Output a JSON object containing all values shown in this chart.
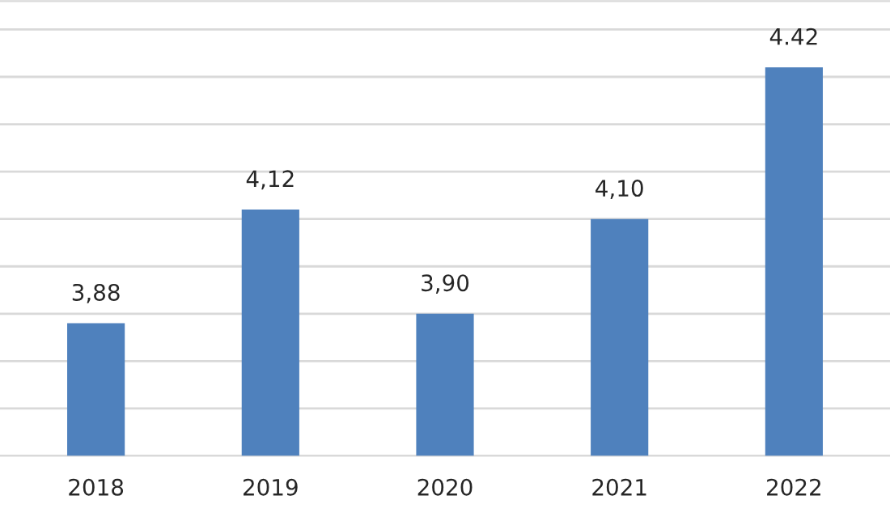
{
  "chart_data": {
    "type": "bar",
    "categories": [
      "2018",
      "2019",
      "2020",
      "2021",
      "2022"
    ],
    "values": [
      3.88,
      4.12,
      3.9,
      4.1,
      4.42
    ],
    "value_labels": [
      "3,88",
      "4,12",
      "3,90",
      "4,10",
      "4.42"
    ],
    "color": "#4f81bd",
    "ylim": [
      3.6,
      4.56
    ],
    "yticks": [
      {
        "value": 3.6,
        "label": null
      },
      {
        "value": 3.7,
        "label": null
      },
      {
        "value": 3.8,
        "label": null
      },
      {
        "value": 3.9,
        "label": null
      },
      {
        "value": 4.0,
        "label": null
      },
      {
        "value": 4.1,
        "label": null
      },
      {
        "value": 4.2,
        "label": null
      },
      {
        "value": 4.3,
        "label": null
      },
      {
        "value": 4.4,
        "label": null
      },
      {
        "value": 4.5,
        "label": null
      }
    ],
    "grid": "y",
    "tick_labels": "x"
  }
}
